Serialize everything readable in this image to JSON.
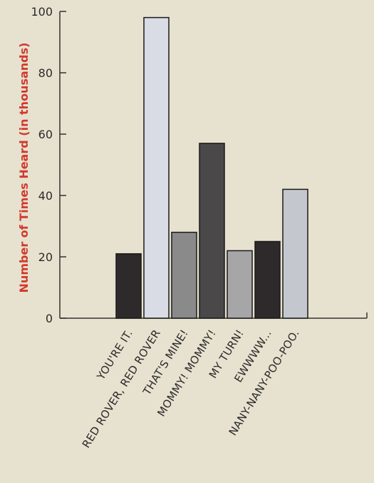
{
  "chart_data": {
    "type": "bar",
    "title": "",
    "xlabel": "",
    "ylabel": "Number of Times Heard (in thousands)",
    "ylim": [
      0,
      100
    ],
    "yticks": [
      0,
      20,
      40,
      60,
      80,
      100
    ],
    "grid": false,
    "categories": [
      "YOU'RE IT.",
      "RED ROVER, RED ROVER",
      "THAT'S MINE!",
      "MOMMY! MOMMY!",
      "MY TURN!",
      "EWWWW...",
      "NANY-NANY-POO-POO."
    ],
    "values": [
      21,
      98,
      28,
      57,
      22,
      25,
      42
    ],
    "bar_colors": [
      "#2e2a2b",
      "#d9dce4",
      "#8b8a8b",
      "#4a4849",
      "#a6a6a8",
      "#2e2a2b",
      "#c4c7cd"
    ]
  },
  "colors": {
    "background": "#e7e1cf",
    "axis": "#333333",
    "ylabel": "#d03a2c",
    "bar_outline": "#1a1a1a"
  }
}
